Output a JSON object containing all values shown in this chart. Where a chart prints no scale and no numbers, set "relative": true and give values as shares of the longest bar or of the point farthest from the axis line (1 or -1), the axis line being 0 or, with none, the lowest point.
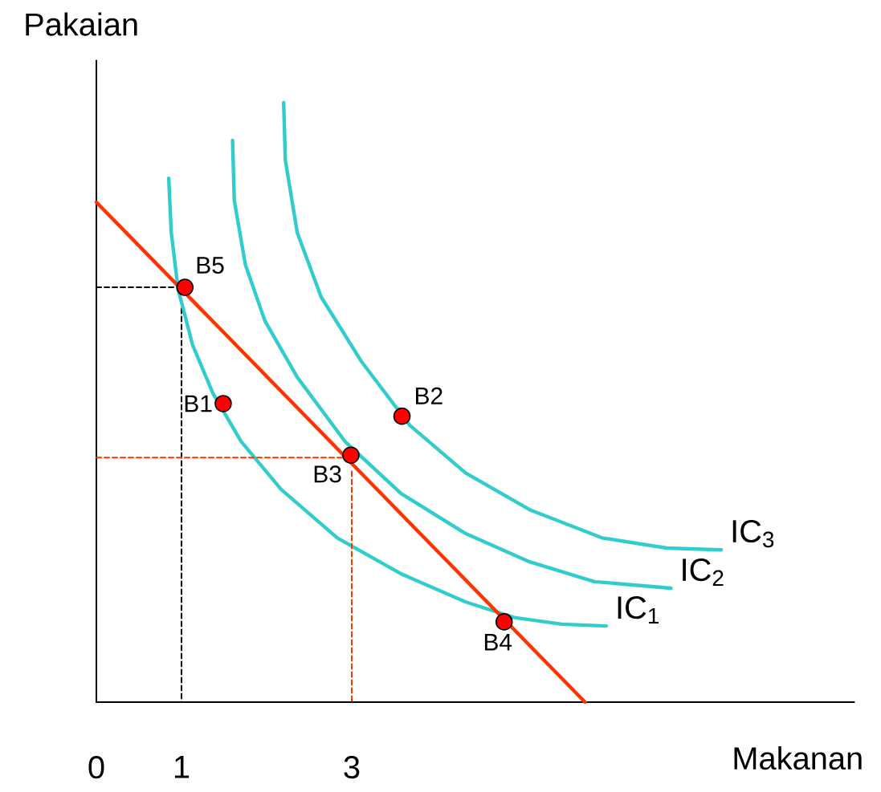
{
  "chart_data": {
    "type": "line",
    "relative": true,
    "xlabel": "Makanan",
    "ylabel": "Pakaian",
    "xlim": [
      0,
      8.9
    ],
    "xticks": [
      0,
      1,
      3
    ],
    "series": [
      {
        "type": "line",
        "color": "#000000",
        "line_style": "dashed",
        "x": [
          0,
          0.93,
          null,
          1,
          1
        ],
        "values": [
          0.692,
          0.692,
          null,
          0.67,
          0
        ]
      },
      {
        "type": "line",
        "name": "IC$_{1}$",
        "color": "#33cccc",
        "x": [
          0.85,
          0.88,
          0.96,
          1.13,
          1.37,
          1.7,
          2.17,
          2.83,
          3.58,
          4.34,
          4.91,
          5.47,
          5.99
        ],
        "values": [
          0.874,
          0.783,
          0.689,
          0.596,
          0.515,
          0.435,
          0.355,
          0.274,
          0.214,
          0.167,
          0.141,
          0.13,
          0.127
        ]
      },
      {
        "type": "line",
        "name": "IC$_{2}$",
        "color": "#33cccc",
        "x": [
          1.6,
          1.62,
          1.75,
          1.98,
          2.36,
          2.92,
          3.58,
          4.34,
          5.09,
          5.85,
          6.75
        ],
        "values": [
          0.937,
          0.837,
          0.73,
          0.636,
          0.542,
          0.435,
          0.348,
          0.281,
          0.234,
          0.201,
          0.19
        ]
      },
      {
        "type": "line",
        "name": "IC$_{3}$",
        "color": "#33cccc",
        "x": [
          2.2,
          2.22,
          2.36,
          2.64,
          3.11,
          3.68,
          4.34,
          5.09,
          5.94,
          6.7,
          7.34
        ],
        "values": [
          1.0,
          0.904,
          0.783,
          0.676,
          0.569,
          0.462,
          0.382,
          0.321,
          0.274,
          0.257,
          0.254
        ]
      },
      {
        "type": "line",
        "color": "#ff3300",
        "x": [
          0,
          5.74
        ],
        "values": [
          0.834,
          0
        ]
      },
      {
        "type": "scatter",
        "marker": "circle",
        "color": "#ff0000",
        "x": [
          1.04,
          1.49,
          3.59,
          2.99,
          4.79
        ],
        "values": [
          0.692,
          0.498,
          0.477,
          0.412,
          0.134
        ]
      },
      {
        "type": "line",
        "color": "#ff3300",
        "line_style": "dashed",
        "x": [
          0,
          2.9,
          null,
          3,
          3
        ],
        "values": [
          0.408,
          0.408,
          null,
          0.385,
          0
        ]
      }
    ],
    "annotations": [
      {
        "text": "B5",
        "x": 1.04,
        "y": 0.692
      },
      {
        "text": "B1",
        "x": 1.49,
        "y": 0.498
      },
      {
        "text": "B2",
        "x": 3.59,
        "y": 0.477
      },
      {
        "text": "B3",
        "x": 2.99,
        "y": 0.412
      },
      {
        "text": "B4",
        "x": 4.79,
        "y": 0.134
      }
    ]
  }
}
